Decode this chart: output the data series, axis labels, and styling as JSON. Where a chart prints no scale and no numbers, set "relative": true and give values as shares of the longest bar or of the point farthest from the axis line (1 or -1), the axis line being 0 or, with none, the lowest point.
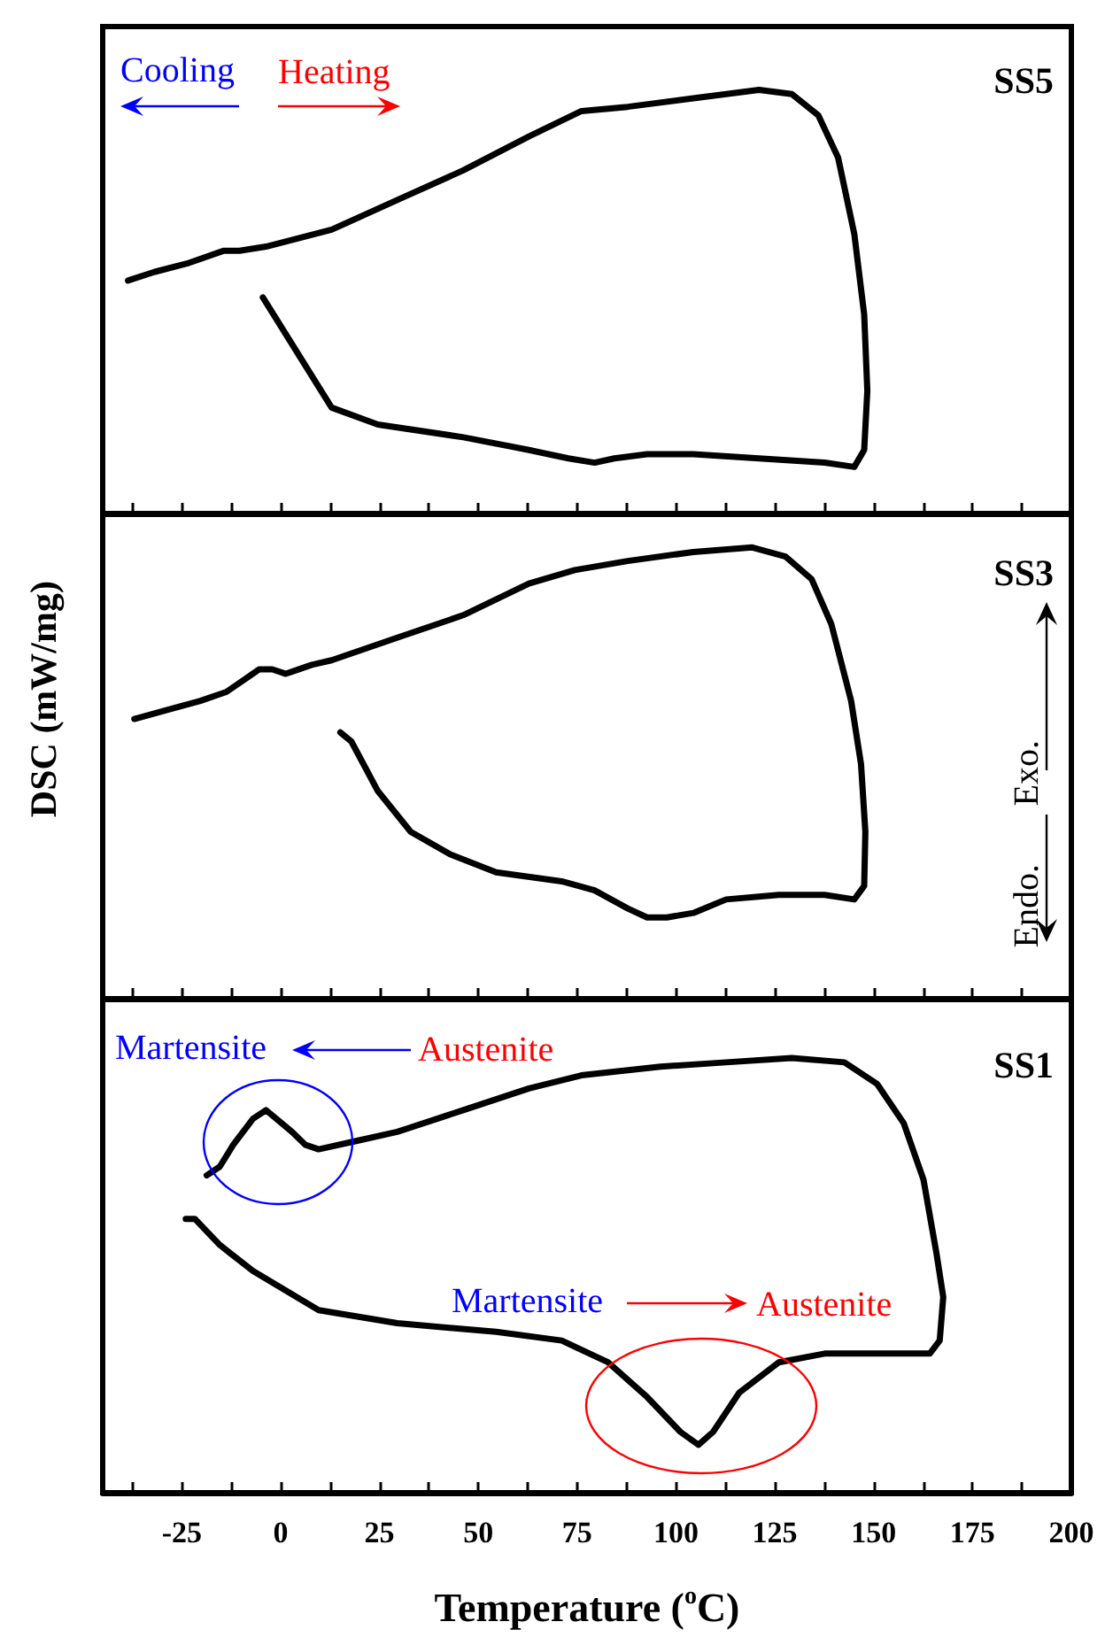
{
  "chart_data": [
    {
      "type": "line",
      "title": "SS5",
      "relative": true,
      "tick_labels": false,
      "xlim": [
        -45,
        200
      ],
      "xticks": [
        {
          "value": -37.5,
          "label": null
        },
        -25,
        {
          "value": -12.5,
          "label": null
        },
        0,
        {
          "value": 12.5,
          "label": null
        },
        25,
        {
          "value": 37.5,
          "label": null
        },
        50,
        {
          "value": 62.5,
          "label": null
        },
        75,
        {
          "value": 87.5,
          "label": null
        },
        100,
        {
          "value": 112.5,
          "label": null
        },
        125,
        {
          "value": 137.5,
          "label": null
        },
        150,
        {
          "value": 162.5,
          "label": null
        },
        175,
        {
          "value": 187.5,
          "label": null
        },
        200
      ],
      "annotations": [
        "Cooling",
        "Heating"
      ],
      "x": [
        -4.5,
        12.9,
        24.6,
        46.2,
        62.8,
        72.8,
        79.4,
        84.4,
        92.7,
        104.4,
        121.0,
        137.6,
        145.1,
        147.6,
        148.4,
        147.6,
        145.1,
        141.0,
        136.0,
        129.3,
        121.0,
        104.4,
        87.8,
        76.1,
        62.8,
        46.2,
        29.5,
        12.9,
        -3.7,
        -10.4,
        -14.5,
        -23.7,
        -32.0,
        -38.6
      ],
      "series": [
        {
          "color": "#000000",
          "values": [
            0.51,
            0.25,
            0.21,
            0.18,
            0.15,
            0.13,
            0.12,
            0.13,
            0.14,
            0.14,
            0.13,
            0.12,
            0.11,
            0.15,
            0.29,
            0.47,
            0.66,
            0.84,
            0.94,
            0.99,
            1.0,
            0.98,
            0.96,
            0.95,
            0.89,
            0.81,
            0.74,
            0.67,
            0.63,
            0.62,
            0.62,
            0.59,
            0.57,
            0.55
          ]
        }
      ]
    },
    {
      "type": "line",
      "title": "SS3",
      "ylabel": "DSC (mW/mg)",
      "relative": true,
      "tick_labels": false,
      "xlim": [
        -45,
        200
      ],
      "xticks": [
        {
          "value": -37.5,
          "label": null
        },
        -25,
        {
          "value": -12.5,
          "label": null
        },
        0,
        {
          "value": 12.5,
          "label": null
        },
        25,
        {
          "value": 37.5,
          "label": null
        },
        50,
        {
          "value": 62.5,
          "label": null
        },
        75,
        {
          "value": 87.5,
          "label": null
        },
        100,
        {
          "value": 112.5,
          "label": null
        },
        125,
        {
          "value": 137.5,
          "label": null
        },
        150,
        {
          "value": 162.5,
          "label": null
        },
        175,
        {
          "value": 187.5,
          "label": null
        },
        200
      ],
      "annotations": [
        "Exo.",
        "Endo."
      ],
      "x": [
        15.1,
        17.9,
        24.6,
        32.9,
        42.9,
        54.5,
        71.1,
        79.4,
        87.8,
        92.7,
        97.7,
        104.4,
        112.7,
        126.0,
        137.6,
        145.1,
        147.6,
        147.9,
        146.8,
        144.3,
        139.3,
        134.3,
        127.7,
        119.3,
        104.4,
        87.8,
        74.4,
        62.8,
        46.2,
        29.5,
        12.9,
        7.9,
        1.3,
        -2.1,
        -5.4,
        -8.7,
        -13.7,
        -20.3,
        -28.7,
        -37.0
      ],
      "series": [
        {
          "color": "#000000",
          "values": [
            0.59,
            0.57,
            0.46,
            0.37,
            0.32,
            0.28,
            0.26,
            0.24,
            0.2,
            0.18,
            0.18,
            0.19,
            0.22,
            0.23,
            0.23,
            0.22,
            0.25,
            0.37,
            0.52,
            0.66,
            0.83,
            0.93,
            0.98,
            1.0,
            0.99,
            0.97,
            0.95,
            0.92,
            0.85,
            0.8,
            0.75,
            0.74,
            0.72,
            0.73,
            0.73,
            0.71,
            0.68,
            0.66,
            0.64,
            0.62
          ]
        }
      ]
    },
    {
      "type": "line",
      "title": "SS1",
      "xlabel": "Temperature ($^{o}$C)",
      "relative": true,
      "tick_labels": "x",
      "xlim": [
        -45,
        200
      ],
      "xticks": [
        {
          "value": -37.5,
          "label": null
        },
        -25,
        {
          "value": -12.5,
          "label": null
        },
        0,
        {
          "value": 12.5,
          "label": null
        },
        25,
        {
          "value": 37.5,
          "label": null
        },
        50,
        {
          "value": 62.5,
          "label": null
        },
        75,
        {
          "value": 87.5,
          "label": null
        },
        100,
        {
          "value": 112.5,
          "label": null
        },
        125,
        {
          "value": 137.5,
          "label": null
        },
        150,
        {
          "value": 162.5,
          "label": null
        },
        175,
        {
          "value": 187.5,
          "label": null
        },
        200
      ],
      "annotations": [
        "Martensite",
        "Austenite",
        "Martensite",
        "Austenite"
      ],
      "x": [
        -24.0,
        -21.7,
        -15.4,
        -7.0,
        9.6,
        29.5,
        54.5,
        71.1,
        82.8,
        92.7,
        101.1,
        105.7,
        109.4,
        116.0,
        126.0,
        137.6,
        154.3,
        164.2,
        166.7,
        167.6,
        165.9,
        162.6,
        157.6,
        150.9,
        142.6,
        129.3,
        112.7,
        96.1,
        76.1,
        62.8,
        46.2,
        29.5,
        19.6,
        9.6,
        6.3,
        2.9,
        -3.7,
        -7.0,
        -12.0,
        -15.4,
        -18.7
      ],
      "series": [
        {
          "color": "#000000",
          "values": [
            0.63,
            0.63,
            0.57,
            0.51,
            0.42,
            0.39,
            0.37,
            0.35,
            0.3,
            0.22,
            0.14,
            0.11,
            0.14,
            0.23,
            0.3,
            0.32,
            0.32,
            0.32,
            0.35,
            0.45,
            0.55,
            0.72,
            0.85,
            0.94,
            0.99,
            1.0,
            0.99,
            0.98,
            0.96,
            0.93,
            0.88,
            0.83,
            0.81,
            0.79,
            0.8,
            0.83,
            0.88,
            0.86,
            0.8,
            0.75,
            0.73
          ]
        }
      ]
    }
  ]
}
